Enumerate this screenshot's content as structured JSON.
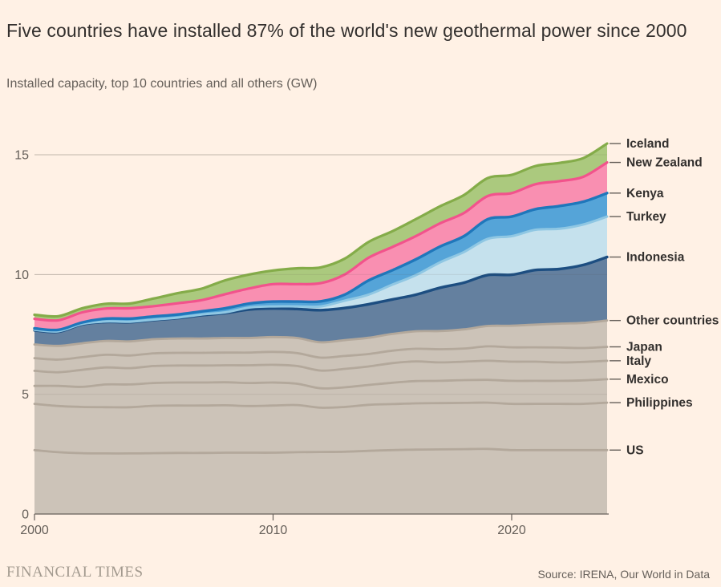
{
  "header": {
    "title": "Five countries have installed 87% of the world's new geothermal power since 2000",
    "subtitle": "Installed capacity, top 10 countries and all others (GW)"
  },
  "footer": {
    "brand": "FINANCIAL TIMES",
    "source": "Source: IRENA, Our World in Data"
  },
  "colors": {
    "background": "#FFF1E5",
    "text_dark": "#33302E",
    "text_grey": "#66605A",
    "gridline": "#CFC4B9",
    "gridline_overlay": "rgba(90,80,70,0.12)",
    "axis": "#66605A",
    "right_label": "#33302E"
  },
  "chart_data": {
    "type": "area",
    "stacked": true,
    "title": "Five countries have installed 87% of the world's new geothermal power since 2000",
    "subtitle": "Installed capacity, top 10 countries and all others (GW)",
    "xlabel": "",
    "ylabel": "Installed capacity (GW)",
    "grid": "horizontal",
    "legend_position": "right-edge-labels",
    "x": [
      2000,
      2001,
      2002,
      2003,
      2004,
      2005,
      2006,
      2007,
      2008,
      2009,
      2010,
      2011,
      2012,
      2013,
      2014,
      2015,
      2016,
      2017,
      2018,
      2019,
      2020,
      2021,
      2022,
      2023,
      2024
    ],
    "x_ticks": [
      2000,
      2010,
      2020
    ],
    "y_ticks": [
      0,
      5,
      10,
      15
    ],
    "ylim": [
      0,
      15.5
    ],
    "series": [
      {
        "name": "US",
        "fill": "#CCC3B8",
        "stroke": "#B3A89B",
        "stroke_width": 2.8,
        "values": [
          2.67,
          2.58,
          2.54,
          2.53,
          2.53,
          2.54,
          2.55,
          2.55,
          2.56,
          2.56,
          2.56,
          2.58,
          2.59,
          2.6,
          2.64,
          2.67,
          2.69,
          2.7,
          2.71,
          2.72,
          2.67,
          2.67,
          2.67,
          2.67,
          2.67
        ]
      },
      {
        "name": "Philippines",
        "fill": "#CCC3B8",
        "stroke": "#B3A89B",
        "stroke_width": 2.8,
        "values": [
          1.93,
          1.93,
          1.93,
          1.93,
          1.93,
          1.98,
          1.98,
          1.98,
          1.98,
          1.95,
          1.97,
          1.97,
          1.85,
          1.87,
          1.92,
          1.92,
          1.93,
          1.93,
          1.93,
          1.93,
          1.93,
          1.93,
          1.93,
          1.93,
          1.98
        ]
      },
      {
        "name": "Mexico",
        "fill": "#CCC3B8",
        "stroke": "#B3A89B",
        "stroke_width": 2.8,
        "values": [
          0.75,
          0.84,
          0.84,
          0.95,
          0.95,
          0.95,
          0.96,
          0.96,
          0.96,
          0.96,
          0.96,
          0.89,
          0.81,
          0.82,
          0.83,
          0.89,
          0.93,
          0.93,
          0.95,
          0.95,
          0.96,
          0.96,
          0.96,
          0.98,
          0.98
        ]
      },
      {
        "name": "Italy",
        "fill": "#CCC3B8",
        "stroke": "#B3A89B",
        "stroke_width": 2.8,
        "values": [
          0.63,
          0.57,
          0.71,
          0.71,
          0.68,
          0.71,
          0.71,
          0.71,
          0.71,
          0.74,
          0.74,
          0.74,
          0.74,
          0.77,
          0.77,
          0.82,
          0.82,
          0.77,
          0.77,
          0.8,
          0.8,
          0.8,
          0.77,
          0.77,
          0.77
        ]
      },
      {
        "name": "Japan",
        "fill": "#CCC3B8",
        "stroke": "#B3A89B",
        "stroke_width": 2.8,
        "values": [
          0.53,
          0.53,
          0.53,
          0.53,
          0.53,
          0.53,
          0.53,
          0.53,
          0.53,
          0.53,
          0.54,
          0.54,
          0.54,
          0.54,
          0.52,
          0.52,
          0.53,
          0.55,
          0.55,
          0.6,
          0.6,
          0.6,
          0.62,
          0.58,
          0.58
        ]
      },
      {
        "name": "Other countries",
        "fill": "#CCC3B8",
        "stroke": "#B3A89B",
        "stroke_width": 2.8,
        "values": [
          0.57,
          0.57,
          0.58,
          0.58,
          0.59,
          0.59,
          0.6,
          0.6,
          0.61,
          0.61,
          0.62,
          0.63,
          0.64,
          0.66,
          0.68,
          0.7,
          0.73,
          0.76,
          0.8,
          0.85,
          0.9,
          0.95,
          1.0,
          1.05,
          1.1
        ]
      },
      {
        "name": "Indonesia",
        "fill": "#64809F",
        "stroke": "#1D4E81",
        "stroke_width": 3.4,
        "values": [
          0.59,
          0.59,
          0.79,
          0.79,
          0.8,
          0.8,
          0.85,
          0.97,
          1.04,
          1.19,
          1.19,
          1.21,
          1.34,
          1.34,
          1.4,
          1.44,
          1.53,
          1.81,
          1.95,
          2.13,
          2.13,
          2.28,
          2.28,
          2.42,
          2.65
        ]
      },
      {
        "name": "Turkey",
        "fill": "#C5E1ED",
        "stroke": "#8FC7E3",
        "stroke_width": 3.0,
        "values": [
          0.02,
          0.02,
          0.02,
          0.02,
          0.02,
          0.02,
          0.02,
          0.03,
          0.03,
          0.08,
          0.09,
          0.11,
          0.16,
          0.31,
          0.4,
          0.62,
          0.82,
          1.06,
          1.28,
          1.51,
          1.61,
          1.68,
          1.68,
          1.69,
          1.69
        ]
      },
      {
        "name": "Kenya",
        "fill": "#55A4D8",
        "stroke": "#1F77BB",
        "stroke_width": 3.4,
        "values": [
          0.06,
          0.06,
          0.06,
          0.12,
          0.13,
          0.13,
          0.13,
          0.13,
          0.17,
          0.17,
          0.2,
          0.2,
          0.21,
          0.25,
          0.59,
          0.6,
          0.66,
          0.66,
          0.66,
          0.82,
          0.82,
          0.86,
          0.95,
          0.95,
          0.98
        ]
      },
      {
        "name": "New Zealand",
        "fill": "#F98FB1",
        "stroke": "#F2538C",
        "stroke_width": 3.2,
        "values": [
          0.4,
          0.4,
          0.42,
          0.42,
          0.43,
          0.43,
          0.47,
          0.47,
          0.59,
          0.63,
          0.73,
          0.73,
          0.76,
          0.84,
          0.95,
          0.97,
          0.97,
          0.97,
          0.97,
          0.97,
          0.98,
          1.04,
          1.04,
          1.04,
          1.28
        ]
      },
      {
        "name": "Iceland",
        "fill": "#ABC97E",
        "stroke": "#84AC49",
        "stroke_width": 3.2,
        "values": [
          0.17,
          0.17,
          0.17,
          0.2,
          0.2,
          0.32,
          0.42,
          0.48,
          0.58,
          0.58,
          0.57,
          0.66,
          0.66,
          0.66,
          0.66,
          0.66,
          0.71,
          0.71,
          0.75,
          0.75,
          0.76,
          0.76,
          0.76,
          0.78,
          0.79
        ]
      }
    ]
  }
}
